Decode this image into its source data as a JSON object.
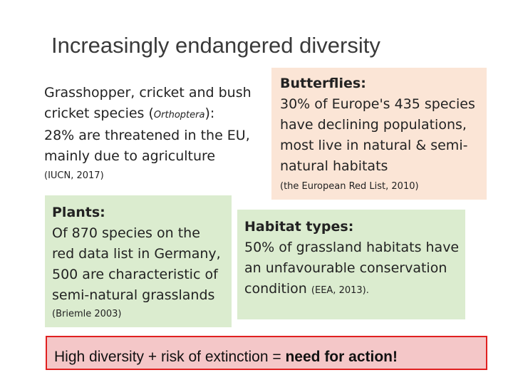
{
  "title": "Increasingly endangered diversity",
  "grasshopper": {
    "line1": "Grasshopper, cricket and bush",
    "line2_a": "cricket species (",
    "line2_b": "Orthoptera",
    "line2_c": "):",
    "line3": "28% are threatened in the EU,",
    "line4": "mainly due to agriculture",
    "cite": "(IUCN, 2017)"
  },
  "butterflies": {
    "heading": "Butterflies:",
    "line1": "30% of Europe's 435 species",
    "line2": "have declining populations,",
    "line3": "most live in natural & semi-",
    "line4": "natural habitats",
    "cite": "(the European Red List, 2010)"
  },
  "plants": {
    "heading": "Plants:",
    "line1": "Of 870 species on the",
    "line2": "red data list in Germany,",
    "line3": "500 are characteristic of",
    "line4": "semi-natural grasslands",
    "cite": "(Briemle 2003)"
  },
  "habitats": {
    "heading": "Habitat types:",
    "line1": "50% of grassland habitats have",
    "line2": "an unfavourable conservation",
    "line3": "condition",
    "cite": "(EEA, 2013)."
  },
  "action": {
    "text": "High diversity + risk of extinction = ",
    "emphasis": "need for action!"
  }
}
